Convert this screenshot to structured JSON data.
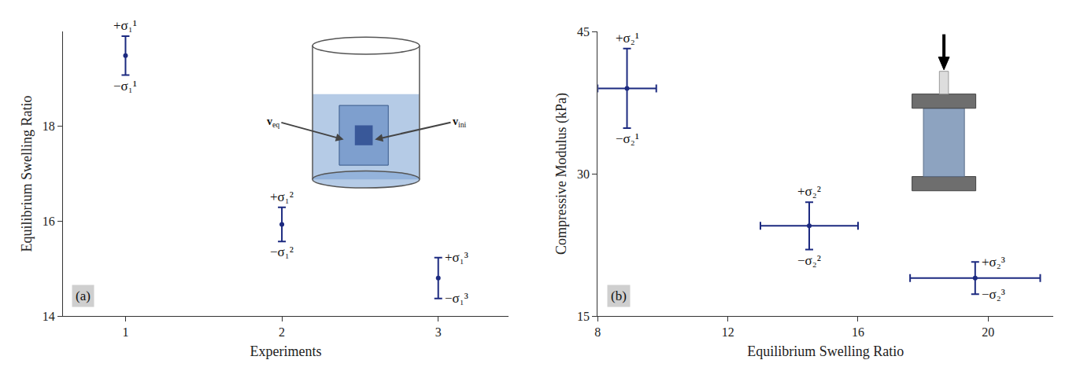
{
  "chart_data": [
    {
      "type": "scatter",
      "panel": "(a)",
      "x_label": "Experiments",
      "y_label": "Equilibrium Swelling Ratio",
      "x": [
        1,
        2,
        3
      ],
      "values": [
        19.49,
        15.93,
        14.8
      ],
      "y_error": [
        0.41,
        0.36,
        0.43
      ],
      "error_labels": [
        {
          "plus": "+σ₁¹",
          "minus": "−σ₁¹"
        },
        {
          "plus": "+σ₁²",
          "minus": "−σ₁²"
        },
        {
          "plus": "+σ₁³",
          "minus": "−σ₁³"
        }
      ],
      "xlim": [
        0.6,
        3.45
      ],
      "xticks": [
        1,
        2,
        3
      ],
      "ylim": [
        14,
        20
      ],
      "yticks": [
        14,
        16,
        18
      ],
      "color": "#1c2a80",
      "marker": "circle",
      "grid": false,
      "inset_labels": [
        {
          "text": "v",
          "sub": "eq"
        },
        {
          "text": "v",
          "sub": "ini"
        }
      ]
    },
    {
      "type": "scatter",
      "panel": "(b)",
      "x_label": "Equilibrium Swelling Ratio",
      "y_label": "Compressive Modulus (kPa)",
      "x": [
        8.9,
        14.5,
        19.6
      ],
      "values": [
        39,
        24.5,
        19
      ],
      "x_error": [
        0.9,
        1.5,
        2.0
      ],
      "y_error": [
        4.2,
        2.5,
        1.7
      ],
      "error_labels": [
        {
          "plus": "+σ₂¹",
          "minus": "−σ₂¹"
        },
        {
          "plus": "+σ₂²",
          "minus": "−σ₂²"
        },
        {
          "plus": "+σ₂³",
          "minus": "−σ₂³"
        }
      ],
      "xlim": [
        8,
        22
      ],
      "xticks": [
        8,
        12,
        16,
        20
      ],
      "ylim": [
        15,
        45
      ],
      "yticks": [
        15,
        30,
        45
      ],
      "color": "#1c2a80",
      "marker": "circle",
      "grid": false
    }
  ]
}
